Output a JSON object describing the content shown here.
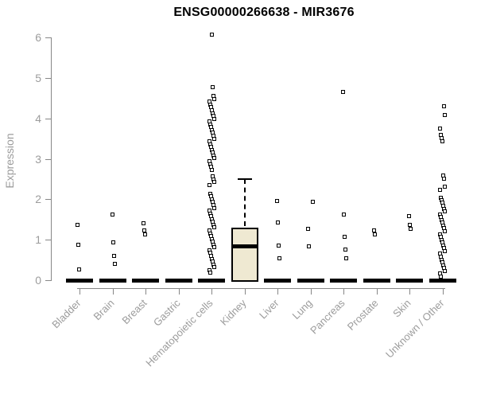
{
  "chart_data": {
    "type": "boxplot",
    "title": "ENSG00000266638 - MIR3676",
    "xlabel": "",
    "ylabel": "Expression",
    "ylim": [
      0,
      6
    ],
    "yticks": [
      0,
      1,
      2,
      3,
      4,
      5,
      6
    ],
    "grid": false,
    "legend": false,
    "categories": [
      "Bladder",
      "Brain",
      "Breast",
      "Gastric",
      "Hematopoietic cells",
      "Kidney",
      "Liver",
      "Lung",
      "Pancreas",
      "Prostate",
      "Skin",
      "Unknown / Other"
    ],
    "groups": [
      {
        "name": "Bladder",
        "zero_bar": true,
        "points": [
          1.37,
          0.88,
          0.26
        ]
      },
      {
        "name": "Brain",
        "zero_bar": true,
        "points": [
          1.62,
          0.93,
          0.6,
          0.4
        ]
      },
      {
        "name": "Breast",
        "zero_bar": true,
        "points": [
          1.4,
          1.22,
          1.13
        ]
      },
      {
        "name": "Gastric",
        "zero_bar": true,
        "points": []
      },
      {
        "name": "Hematopoietic cells",
        "zero_bar": true,
        "points": [
          6.07,
          4.78,
          4.55,
          4.48,
          4.41,
          4.34,
          4.27,
          4.2,
          4.13,
          4.06,
          3.99,
          3.92,
          3.85,
          3.78,
          3.71,
          3.64,
          3.57,
          3.5,
          3.43,
          3.36,
          3.29,
          3.22,
          3.15,
          3.08,
          3.01,
          2.94,
          2.87,
          2.8,
          2.73,
          2.56,
          2.49,
          2.42,
          2.35,
          2.14,
          2.07,
          2.0,
          1.93,
          1.86,
          1.79,
          1.72,
          1.65,
          1.58,
          1.51,
          1.44,
          1.37,
          1.3,
          1.23,
          1.16,
          1.09,
          1.02,
          0.95,
          0.88,
          0.81,
          0.74,
          0.67,
          0.6,
          0.53,
          0.46,
          0.39,
          0.32,
          0.25,
          0.18
        ]
      },
      {
        "name": "Kidney",
        "zero_bar": false,
        "points": [],
        "box": {
          "whisker_low": 0,
          "q1": 0,
          "median": 0.84,
          "q3": 1.3,
          "whisker_high": 2.5
        }
      },
      {
        "name": "Liver",
        "zero_bar": true,
        "points": [
          1.95,
          1.43,
          0.85,
          0.55
        ]
      },
      {
        "name": "Lung",
        "zero_bar": true,
        "points": [
          1.93,
          1.27,
          0.83
        ]
      },
      {
        "name": "Pancreas",
        "zero_bar": true,
        "points": [
          4.66,
          1.63,
          1.08,
          0.76,
          0.55
        ]
      },
      {
        "name": "Prostate",
        "zero_bar": true,
        "points": [
          1.22,
          1.13
        ]
      },
      {
        "name": "Skin",
        "zero_bar": true,
        "points": [
          1.58,
          1.37,
          1.27
        ]
      },
      {
        "name": "Unknown / Other",
        "zero_bar": true,
        "points": [
          4.3,
          4.08,
          3.75,
          3.6,
          3.52,
          3.44,
          2.58,
          2.5,
          2.32,
          2.24,
          2.04,
          1.98,
          1.91,
          1.84,
          1.77,
          1.7,
          1.63,
          1.56,
          1.49,
          1.42,
          1.35,
          1.28,
          1.21,
          1.14,
          1.07,
          1.0,
          0.93,
          0.86,
          0.79,
          0.72,
          0.65,
          0.58,
          0.51,
          0.44,
          0.37,
          0.3,
          0.23,
          0.16,
          0.09
        ]
      }
    ],
    "colors": {
      "box_fill": "#efe9d2",
      "box_border": "#000000",
      "marker_border": "#000000",
      "marker_fill": "#ffffff",
      "zero_bar": "#000000",
      "axis": "#878787",
      "tick_label": "#9c9c9c",
      "title": "#000000"
    }
  }
}
